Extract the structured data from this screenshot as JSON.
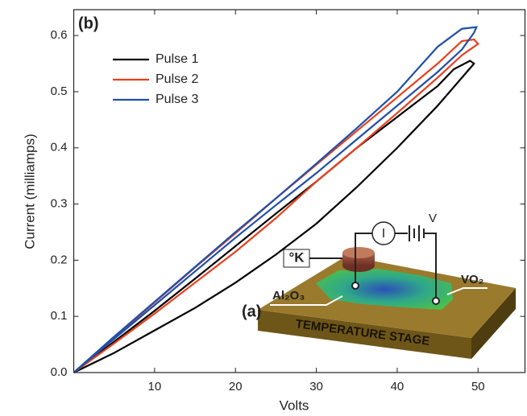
{
  "chart_data": {
    "type": "line",
    "xlabel": "Volts",
    "ylabel": "Current (milliamps)",
    "annotations": [
      "(b)"
    ],
    "xlim": [
      0,
      55.8
    ],
    "xticks": [
      10,
      20,
      30,
      40,
      50
    ],
    "ylim": [
      0,
      0.646
    ],
    "yticks": [
      {
        "value": 0,
        "label": "0.0"
      },
      0.1,
      0.2,
      0.3,
      0.4,
      0.5,
      0.6
    ],
    "legend": "upper left",
    "series": [
      {
        "name": "Pulse 1",
        "color": "#000000",
        "x": [
          0,
          5,
          10,
          15,
          20,
          25,
          30,
          35,
          40,
          45,
          48,
          49.5,
          49,
          47,
          45,
          40,
          35,
          30,
          25,
          20,
          15,
          10,
          5,
          0
        ],
        "values": [
          0,
          0.035,
          0.075,
          0.115,
          0.16,
          0.21,
          0.265,
          0.33,
          0.4,
          0.475,
          0.525,
          0.55,
          0.555,
          0.54,
          0.51,
          0.455,
          0.4,
          0.34,
          0.283,
          0.225,
          0.167,
          0.11,
          0.055,
          0
        ]
      },
      {
        "name": "Pulse 2",
        "color": "#e8401c",
        "x": [
          0,
          5,
          10,
          15,
          20,
          25,
          30,
          35,
          40,
          45,
          48,
          50,
          49.5,
          48,
          45,
          40,
          35,
          30,
          25,
          20,
          15,
          10,
          5,
          0
        ],
        "values": [
          0,
          0.052,
          0.105,
          0.16,
          0.215,
          0.275,
          0.34,
          0.4,
          0.462,
          0.525,
          0.565,
          0.585,
          0.593,
          0.59,
          0.55,
          0.49,
          0.43,
          0.37,
          0.31,
          0.248,
          0.187,
          0.125,
          0.062,
          0
        ]
      },
      {
        "name": "Pulse 3",
        "color": "#1f4fa8",
        "x": [
          0,
          5,
          10,
          15,
          20,
          25,
          30,
          35,
          40,
          45,
          48,
          49.5,
          49.8,
          48,
          45,
          40,
          35,
          30,
          25,
          20,
          15,
          10,
          5,
          0
        ],
        "values": [
          0,
          0.06,
          0.12,
          0.18,
          0.24,
          0.298,
          0.355,
          0.415,
          0.475,
          0.535,
          0.575,
          0.605,
          0.615,
          0.612,
          0.58,
          0.5,
          0.435,
          0.372,
          0.31,
          0.25,
          0.188,
          0.126,
          0.064,
          0
        ]
      }
    ]
  },
  "inset": {
    "label": "(a)",
    "thermocouple": "°K",
    "ammeter": "I",
    "voltage": "V",
    "substrate": "Al₂O₃",
    "film": "VO₂",
    "stage": "TEMPERATURE STAGE"
  }
}
